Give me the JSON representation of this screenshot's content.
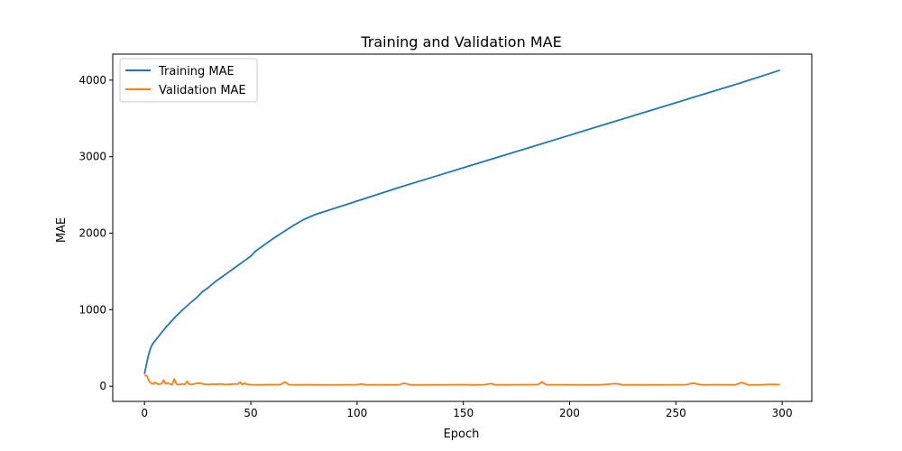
{
  "chart_data": {
    "type": "line",
    "title": "Training and Validation MAE",
    "xlabel": "Epoch",
    "ylabel": "MAE",
    "xlim": [
      -14.95,
      313.95
    ],
    "ylim": [
      -198,
      4340
    ],
    "xticks": [
      0,
      50,
      100,
      150,
      200,
      250,
      300
    ],
    "yticks": [
      0,
      1000,
      2000,
      3000,
      4000
    ],
    "grid": false,
    "legend_position": "upper-left",
    "series": [
      {
        "name": "Training MAE",
        "color": "#1f77b4",
        "x": [
          0,
          1,
          2,
          3,
          4,
          6,
          8,
          10,
          12,
          15,
          18,
          20,
          22,
          25,
          27,
          30,
          33,
          36,
          40,
          45,
          47,
          50,
          52,
          55,
          60,
          65,
          70,
          75,
          80,
          90,
          100,
          110,
          120,
          140,
          160,
          180,
          200,
          220,
          240,
          260,
          280,
          299
        ],
        "y": [
          160,
          300,
          420,
          510,
          560,
          630,
          700,
          770,
          830,
          920,
          1000,
          1050,
          1100,
          1170,
          1230,
          1290,
          1360,
          1420,
          1500,
          1600,
          1640,
          1700,
          1760,
          1820,
          1920,
          2010,
          2100,
          2180,
          2240,
          2330,
          2420,
          2510,
          2600,
          2770,
          2940,
          3110,
          3280,
          3450,
          3620,
          3790,
          3960,
          4130
        ]
      },
      {
        "name": "Validation MAE",
        "color": "#ff7f0e",
        "x": [
          0,
          1,
          2,
          3,
          4,
          5,
          6,
          7,
          8,
          9,
          10,
          11,
          12,
          13,
          14,
          15,
          16,
          17,
          18,
          19,
          20,
          21,
          22,
          24,
          26,
          28,
          30,
          32,
          34,
          36,
          38,
          40,
          42,
          44,
          45,
          46,
          47,
          48,
          50,
          55,
          60,
          64,
          66,
          68,
          72,
          78,
          85,
          92,
          100,
          102,
          104,
          110,
          115,
          120,
          122,
          125,
          130,
          140,
          150,
          155,
          160,
          163,
          165,
          170,
          180,
          185,
          187,
          189,
          195,
          205,
          215,
          222,
          225,
          235,
          245,
          255,
          258,
          262,
          270,
          278,
          281,
          284,
          290,
          295,
          299
        ],
        "y": [
          140,
          140,
          75,
          40,
          30,
          50,
          30,
          25,
          35,
          80,
          30,
          45,
          28,
          20,
          95,
          30,
          20,
          25,
          30,
          22,
          65,
          28,
          22,
          35,
          40,
          28,
          22,
          28,
          25,
          30,
          22,
          25,
          28,
          30,
          55,
          20,
          40,
          25,
          20,
          18,
          22,
          20,
          55,
          20,
          18,
          20,
          17,
          18,
          20,
          30,
          18,
          20,
          18,
          19,
          40,
          17,
          18,
          19,
          20,
          18,
          20,
          35,
          18,
          19,
          20,
          22,
          55,
          19,
          20,
          18,
          19,
          35,
          18,
          18,
          19,
          20,
          40,
          18,
          20,
          19,
          50,
          18,
          19,
          25,
          20
        ]
      }
    ]
  }
}
